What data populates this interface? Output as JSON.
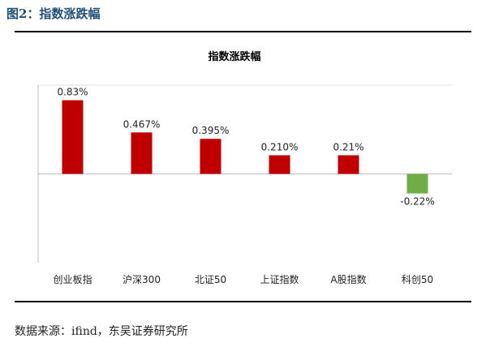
{
  "figure": {
    "caption": "图2：指数涨跌幅",
    "source": "数据来源：ifind，东吴证券研究所"
  },
  "chart_data": {
    "type": "bar",
    "title": "指数涨跌幅",
    "categories": [
      "创业板指",
      "沪深300",
      "北证50",
      "上证指数",
      "A股指数",
      "科创50"
    ],
    "values": [
      0.83,
      0.467,
      0.395,
      0.21,
      0.21,
      -0.22
    ],
    "data_labels": [
      "0.83%",
      "0.467%",
      "0.395%",
      "0.210%",
      "0.21%",
      "-0.22%"
    ],
    "ylim": [
      -1.0,
      1.0
    ],
    "grid": false,
    "legend": "none",
    "colors": {
      "positive": "#c00000",
      "negative": "#70ad47",
      "axis": "#bfbfbf"
    }
  }
}
